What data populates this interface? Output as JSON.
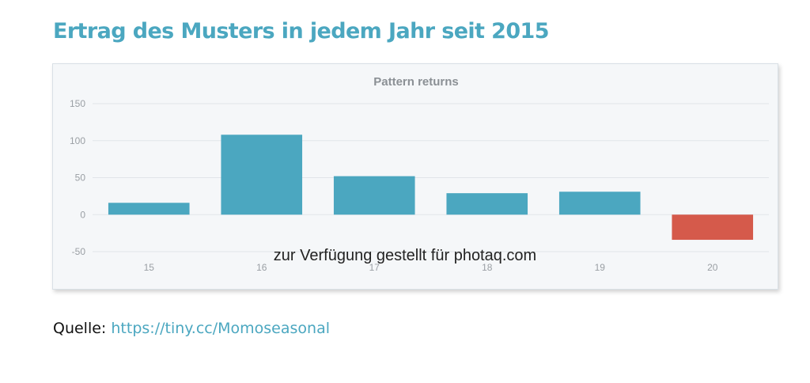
{
  "heading": "Ertrag des Musters in jedem Jahr seit 2015",
  "chart_data": {
    "type": "bar",
    "title": "Pattern returns",
    "categories": [
      "15",
      "16",
      "17",
      "18",
      "19",
      "20"
    ],
    "values": [
      16,
      108,
      52,
      29,
      31,
      -34
    ],
    "ylim": [
      -50,
      150
    ],
    "yticks": [
      150,
      100,
      50,
      0,
      -50
    ],
    "grid": true,
    "colors": {
      "positive": "#4ba7c0",
      "negative": "#d55a4b"
    }
  },
  "watermark": "zur Verfügung gestellt für photaq.com",
  "source": {
    "label": "Quelle:",
    "link_text": "https://tiny.cc/Momoseasonal"
  }
}
